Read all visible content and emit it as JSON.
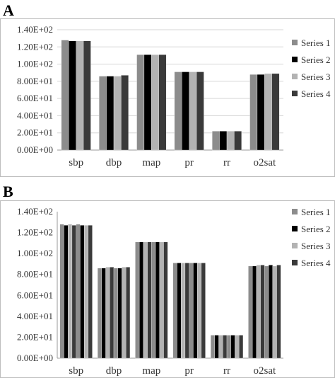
{
  "panels": [
    {
      "label": "A"
    },
    {
      "label": "B"
    }
  ],
  "chart_data": [
    {
      "type": "bar",
      "panel": "A",
      "categories": [
        "sbp",
        "dbp",
        "map",
        "pr",
        "rr",
        "o2sat"
      ],
      "y_ticks": [
        "0.00E+00",
        "2.00E+01",
        "4.00E+01",
        "6.00E+01",
        "8.00E+01",
        "1.00E+02",
        "1.20E+02",
        "1.40E+02"
      ],
      "ylim": [
        0,
        140
      ],
      "grid": true,
      "legend_position": "right",
      "series": [
        {
          "name": "Series 1",
          "color": "#8c8c8c",
          "values": [
            128,
            86,
            111,
            91,
            22,
            88
          ]
        },
        {
          "name": "Series 2",
          "color": "#000000",
          "values": [
            127,
            86,
            111,
            91,
            22,
            88
          ]
        },
        {
          "name": "Series 3",
          "color": "#b3b3b3",
          "values": [
            127,
            86,
            111,
            91,
            22,
            89
          ]
        },
        {
          "name": "Series 4",
          "color": "#3a3a3a",
          "values": [
            127,
            87,
            111,
            91,
            22,
            89
          ]
        }
      ]
    },
    {
      "type": "bar",
      "panel": "B",
      "categories": [
        "sbp",
        "dbp",
        "map",
        "pr",
        "rr",
        "o2sat"
      ],
      "y_ticks": [
        "0.00E+00",
        "2.00E+01",
        "4.00E+01",
        "6.00E+01",
        "8.00E+01",
        "1.00E+02",
        "1.20E+02",
        "1.40E+02"
      ],
      "ylim": [
        0,
        140
      ],
      "grid": false,
      "legend_position": "right",
      "series": [
        {
          "name": "Series 1",
          "color": "#8c8c8c",
          "values": [
            128,
            86,
            111,
            91,
            22,
            88
          ]
        },
        {
          "name": "Series 2",
          "color": "#000000",
          "values": [
            127,
            86,
            111,
            91,
            22,
            88
          ]
        },
        {
          "name": "Series 3",
          "color": "#b3b3b3",
          "values": [
            128,
            87,
            111,
            91,
            22,
            89
          ]
        },
        {
          "name": "Series 4",
          "color": "#3a3a3a",
          "values": [
            127,
            87,
            111,
            91,
            22,
            89
          ]
        },
        {
          "name": "",
          "color": "#8c8c8c",
          "values": [
            128,
            86,
            111,
            91,
            22,
            88
          ]
        },
        {
          "name": "",
          "color": "#000000",
          "values": [
            127,
            86,
            111,
            91,
            22,
            89
          ]
        },
        {
          "name": "",
          "color": "#b3b3b3",
          "values": [
            127,
            87,
            111,
            91,
            22,
            88
          ]
        },
        {
          "name": "",
          "color": "#3a3a3a",
          "values": [
            127,
            87,
            111,
            91,
            22,
            89
          ]
        }
      ]
    }
  ]
}
